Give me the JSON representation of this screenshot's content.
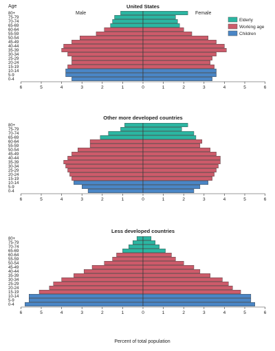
{
  "header": {
    "age_label": "Age",
    "male_label": "Male",
    "female_label": "Female"
  },
  "legend": {
    "items": [
      {
        "label": "Elderly",
        "color": "#2bb6a2"
      },
      {
        "label": "Working age",
        "color": "#cd5b6a"
      },
      {
        "label": "Children",
        "color": "#4a86c6"
      }
    ],
    "placement": "top-right"
  },
  "xlabel": "Percent of total population",
  "chart_data": [
    {
      "type": "bar",
      "orientation": "horizontal",
      "title": "United States",
      "categories": [
        "80+",
        "75-79",
        "70-74",
        "65-69",
        "60-64",
        "55-59",
        "50-54",
        "45-49",
        "40-44",
        "35-39",
        "30-34",
        "25-29",
        "20-24",
        "15-19",
        "10-14",
        "5-9",
        "0-4"
      ],
      "groups": [
        "Elderly",
        "Elderly",
        "Elderly",
        "Elderly",
        "Working age",
        "Working age",
        "Working age",
        "Working age",
        "Working age",
        "Working age",
        "Working age",
        "Working age",
        "Working age",
        "Working age",
        "Children",
        "Children",
        "Children"
      ],
      "series": [
        {
          "name": "Male",
          "values": [
            1.1,
            1.4,
            1.5,
            1.6,
            1.9,
            2.3,
            3.1,
            3.5,
            3.9,
            4.0,
            3.7,
            3.5,
            3.5,
            3.7,
            3.8,
            3.8,
            3.5
          ]
        },
        {
          "name": "Female",
          "values": [
            2.2,
            1.6,
            1.7,
            1.8,
            2.0,
            2.4,
            3.2,
            3.6,
            4.0,
            4.1,
            3.6,
            3.4,
            3.3,
            3.5,
            3.6,
            3.6,
            3.4
          ]
        }
      ],
      "xlim": [
        -6,
        6
      ],
      "xticks": [
        "6",
        "5",
        "4",
        "3",
        "2",
        "1",
        "0",
        "1",
        "2",
        "3",
        "4",
        "5",
        "6"
      ]
    },
    {
      "type": "bar",
      "orientation": "horizontal",
      "title": "Other more developed countries",
      "categories": [
        "80+",
        "75-79",
        "70-74",
        "65-69",
        "60-64",
        "55-59",
        "50-54",
        "45-49",
        "40-44",
        "35-39",
        "30-34",
        "25-29",
        "20-24",
        "15-19",
        "10-14",
        "5-9",
        "0-4"
      ],
      "groups": [
        "Elderly",
        "Elderly",
        "Elderly",
        "Elderly",
        "Working age",
        "Working age",
        "Working age",
        "Working age",
        "Working age",
        "Working age",
        "Working age",
        "Working age",
        "Working age",
        "Working age",
        "Children",
        "Children",
        "Children"
      ],
      "series": [
        {
          "name": "Male",
          "values": [
            0.9,
            1.1,
            1.7,
            2.1,
            2.6,
            2.6,
            3.2,
            3.5,
            3.7,
            3.9,
            3.8,
            3.7,
            3.6,
            3.5,
            3.4,
            3.0,
            2.7
          ]
        },
        {
          "name": "Female",
          "values": [
            2.2,
            1.9,
            2.5,
            2.6,
            2.9,
            2.8,
            3.3,
            3.6,
            3.8,
            3.8,
            3.7,
            3.6,
            3.5,
            3.4,
            3.2,
            2.8,
            2.5
          ]
        }
      ],
      "xlim": [
        -6,
        6
      ],
      "xticks": [
        "6",
        "5",
        "4",
        "3",
        "2",
        "1",
        "0",
        "1",
        "2",
        "3",
        "4",
        "5",
        "6"
      ]
    },
    {
      "type": "bar",
      "orientation": "horizontal",
      "title": "Less developed countries",
      "categories": [
        "80+",
        "75-79",
        "70-74",
        "65-69",
        "60-64",
        "55-59",
        "50-54",
        "45-49",
        "40-44",
        "35-39",
        "30-34",
        "25-29",
        "20-24",
        "15-19",
        "10-14",
        "5-9",
        "0-4"
      ],
      "groups": [
        "Elderly",
        "Elderly",
        "Elderly",
        "Elderly",
        "Working age",
        "Working age",
        "Working age",
        "Working age",
        "Working age",
        "Working age",
        "Working age",
        "Working age",
        "Working age",
        "Working age",
        "Children",
        "Children",
        "Children"
      ],
      "series": [
        {
          "name": "Male",
          "values": [
            0.3,
            0.5,
            0.7,
            1.0,
            1.3,
            1.5,
            1.9,
            2.5,
            2.9,
            3.4,
            4.0,
            4.4,
            4.6,
            5.1,
            5.6,
            5.6,
            5.8
          ]
        },
        {
          "name": "Female",
          "values": [
            0.4,
            0.6,
            0.8,
            1.1,
            1.4,
            1.6,
            2.0,
            2.5,
            2.8,
            3.3,
            3.9,
            4.2,
            4.4,
            4.8,
            5.3,
            5.3,
            5.5
          ]
        }
      ],
      "xlim": [
        -6,
        6
      ],
      "xticks": [
        "6",
        "5",
        "4",
        "3",
        "2",
        "1",
        "0",
        "1",
        "2",
        "3",
        "4",
        "5",
        "6"
      ]
    }
  ]
}
